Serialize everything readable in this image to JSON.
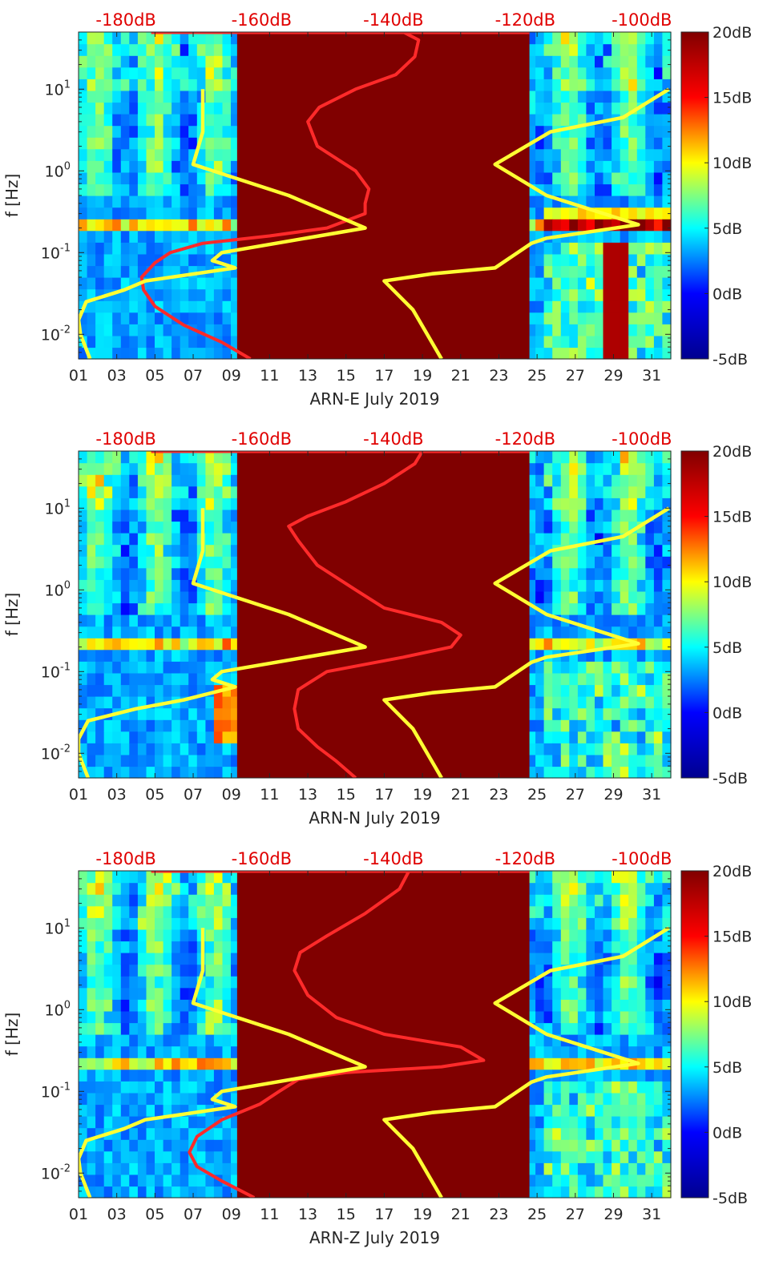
{
  "colors": {
    "colormap_stops": [
      "#00008f",
      "#0000ff",
      "#00ffff",
      "#ffff00",
      "#ff0000",
      "#800000"
    ],
    "masked_fill": "#800000",
    "noise_curve": "#ff2a2a",
    "model_curve": "#ffff33",
    "top_axis_text": "#e00000",
    "axis_text": "#262626"
  },
  "chart_data": [
    {
      "type": "heatmap",
      "title": "",
      "xlabel": "ARN-E July 2019",
      "ylabel": "f [Hz]",
      "x_unit": "day of month",
      "xlim": [
        1,
        32
      ],
      "ylim": [
        0.005,
        50
      ],
      "y_scale": "log",
      "x_tick_labels": [
        "01",
        "03",
        "05",
        "07",
        "09",
        "11",
        "13",
        "15",
        "17",
        "19",
        "21",
        "23",
        "25",
        "27",
        "29",
        "31"
      ],
      "y_tick_labels": [
        "10^-2",
        "10^-1",
        "10^0",
        "10^1"
      ],
      "top_axis_labels": [
        "-180dB",
        "-160dB",
        "-140dB",
        "-120dB",
        "-100dB"
      ],
      "colorbar": {
        "range": [
          -5,
          20
        ],
        "tick_labels": [
          "20dB",
          "15dB",
          "10dB",
          "5dB",
          "0dB",
          "-5dB"
        ]
      },
      "masked_interval_days": [
        9.3,
        24.6
      ],
      "series": [
        {
          "name": "noise level (red)",
          "x": [
            10.0,
            8.5,
            6.5,
            5.0,
            4.4,
            4.3,
            5.0,
            5.8,
            7.5,
            11.0,
            14.0,
            16.0,
            16.0,
            16.2,
            15.5,
            13.5,
            13.0,
            13.6,
            15.5,
            17.6,
            18.6,
            18.8,
            18.0
          ],
          "y": [
            0.005,
            0.008,
            0.013,
            0.022,
            0.035,
            0.05,
            0.075,
            0.1,
            0.13,
            0.16,
            0.2,
            0.3,
            0.4,
            0.6,
            1.0,
            2.0,
            4.0,
            6.0,
            10.0,
            15.0,
            25.0,
            40.0,
            50.0
          ]
        },
        {
          "name": "model curve (yellow)",
          "x": [
            1.6,
            1.1,
            1.0,
            1.4,
            3.4,
            4.5,
            9.2,
            8.0,
            8.5,
            16.0,
            12.0,
            7.0,
            7.5,
            7.5
          ],
          "y": [
            0.005,
            0.01,
            0.015,
            0.025,
            0.035,
            0.045,
            0.065,
            0.08,
            0.1,
            0.2,
            0.5,
            1.2,
            3.0,
            10.0
          ]
        },
        {
          "name": "model curve (yellow)",
          "x": [
            20.0,
            18.5,
            17.0,
            19.5,
            22.8,
            24.7,
            25.5,
            30.3,
            25.5,
            22.8,
            25.7,
            29.5,
            31.9
          ],
          "y": [
            0.005,
            0.02,
            0.045,
            0.055,
            0.065,
            0.13,
            0.15,
            0.22,
            0.5,
            1.2,
            3.0,
            4.5,
            10.0
          ]
        }
      ]
    },
    {
      "type": "heatmap",
      "title": "",
      "xlabel": "ARN-N July 2019",
      "ylabel": "f [Hz]",
      "x_unit": "day of month",
      "xlim": [
        1,
        32
      ],
      "ylim": [
        0.005,
        50
      ],
      "y_scale": "log",
      "x_tick_labels": [
        "01",
        "03",
        "05",
        "07",
        "09",
        "11",
        "13",
        "15",
        "17",
        "19",
        "21",
        "23",
        "25",
        "27",
        "29",
        "31"
      ],
      "y_tick_labels": [
        "10^-2",
        "10^-1",
        "10^0",
        "10^1"
      ],
      "top_axis_labels": [
        "-180dB",
        "-160dB",
        "-140dB",
        "-120dB",
        "-100dB"
      ],
      "colorbar": {
        "range": [
          -5,
          20
        ],
        "tick_labels": [
          "20dB",
          "15dB",
          "10dB",
          "5dB",
          "0dB",
          "-5dB"
        ]
      },
      "masked_interval_days": [
        9.3,
        24.6
      ],
      "series": [
        {
          "name": "noise level (red)",
          "x": [
            15.5,
            14.5,
            13.5,
            12.5,
            12.3,
            12.5,
            14.0,
            18.0,
            20.5,
            21.0,
            20.0,
            17.0,
            15.5,
            13.5,
            12.5,
            12.0,
            13.0,
            15.0,
            17.0,
            18.6,
            19.0
          ],
          "y": [
            0.005,
            0.008,
            0.012,
            0.02,
            0.035,
            0.06,
            0.1,
            0.15,
            0.2,
            0.28,
            0.4,
            0.6,
            1.0,
            2.0,
            4.0,
            6.0,
            8.0,
            12.0,
            20.0,
            35.0,
            50.0
          ]
        },
        {
          "name": "model curve (yellow)",
          "x": [
            1.5,
            1.0,
            1.0,
            1.5,
            4.0,
            6.5,
            9.2,
            8.0,
            8.5,
            16.0,
            12.0,
            7.0,
            7.5,
            7.5
          ],
          "y": [
            0.005,
            0.01,
            0.015,
            0.025,
            0.035,
            0.045,
            0.065,
            0.08,
            0.1,
            0.2,
            0.5,
            1.2,
            3.0,
            10.0
          ]
        },
        {
          "name": "model curve (yellow)",
          "x": [
            20.0,
            18.5,
            17.0,
            19.5,
            22.8,
            24.7,
            25.5,
            30.3,
            25.5,
            22.8,
            25.7,
            29.5,
            31.9
          ],
          "y": [
            0.005,
            0.02,
            0.045,
            0.055,
            0.065,
            0.13,
            0.15,
            0.22,
            0.5,
            1.2,
            3.0,
            4.5,
            10.0
          ]
        }
      ]
    },
    {
      "type": "heatmap",
      "title": "",
      "xlabel": "ARN-Z July 2019",
      "ylabel": "f [Hz]",
      "x_unit": "day of month",
      "xlim": [
        1,
        32
      ],
      "ylim": [
        0.005,
        50
      ],
      "y_scale": "log",
      "x_tick_labels": [
        "01",
        "03",
        "05",
        "07",
        "09",
        "11",
        "13",
        "15",
        "17",
        "19",
        "21",
        "23",
        "25",
        "27",
        "29",
        "31"
      ],
      "y_tick_labels": [
        "10^-2",
        "10^-1",
        "10^0",
        "10^1"
      ],
      "top_axis_labels": [
        "-180dB",
        "-160dB",
        "-140dB",
        "-120dB",
        "-100dB"
      ],
      "colorbar": {
        "range": [
          -5,
          20
        ],
        "tick_labels": [
          "20dB",
          "15dB",
          "10dB",
          "5dB",
          "0dB",
          "-5dB"
        ]
      },
      "masked_interval_days": [
        9.3,
        24.6
      ],
      "series": [
        {
          "name": "noise level (red)",
          "x": [
            10.2,
            8.5,
            7.2,
            6.8,
            7.2,
            8.5,
            10.5,
            11.5,
            12.5,
            15.0,
            20.0,
            22.2,
            21.0,
            17.0,
            14.5,
            13.0,
            12.3,
            12.6,
            14.0,
            16.0,
            17.8,
            18.3
          ],
          "y": [
            0.005,
            0.008,
            0.012,
            0.018,
            0.028,
            0.045,
            0.07,
            0.1,
            0.14,
            0.17,
            0.2,
            0.24,
            0.35,
            0.5,
            0.8,
            1.5,
            3.0,
            5.0,
            8.0,
            15.0,
            30.0,
            50.0
          ]
        },
        {
          "name": "model curve (yellow)",
          "x": [
            1.6,
            1.1,
            1.0,
            1.4,
            3.4,
            4.5,
            9.2,
            8.0,
            8.5,
            16.0,
            12.0,
            7.0,
            7.5,
            7.5
          ],
          "y": [
            0.005,
            0.01,
            0.015,
            0.025,
            0.035,
            0.045,
            0.065,
            0.08,
            0.1,
            0.2,
            0.5,
            1.2,
            3.0,
            10.0
          ]
        },
        {
          "name": "model curve (yellow)",
          "x": [
            20.0,
            18.5,
            17.0,
            19.5,
            22.8,
            24.7,
            25.5,
            30.3,
            25.5,
            22.8,
            25.7,
            29.5,
            31.9
          ],
          "y": [
            0.005,
            0.02,
            0.045,
            0.055,
            0.065,
            0.13,
            0.15,
            0.22,
            0.5,
            1.2,
            3.0,
            4.5,
            10.0
          ]
        }
      ]
    }
  ]
}
